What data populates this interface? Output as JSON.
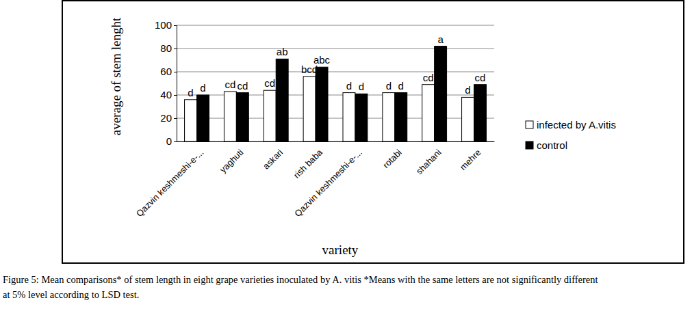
{
  "chart_data": {
    "type": "bar",
    "x_label": "variety",
    "y_label": "average of stem lenght",
    "categories": [
      "Qazvin keshmeshi-e-...",
      "yaghuti",
      "askari",
      "rish baba",
      "Qazvin keshmeshi-e-...",
      "rotabi",
      "shahani",
      "mehre"
    ],
    "series": [
      {
        "name": "infected by A.vitis",
        "color": "#ffffff",
        "values": [
          36,
          43,
          44,
          56,
          42,
          42,
          49,
          38
        ],
        "letters": [
          "d",
          "cd",
          "cd",
          "bcd",
          "d",
          "d",
          "cd",
          "d"
        ]
      },
      {
        "name": "control",
        "color": "#000000",
        "values": [
          40,
          42,
          71,
          64,
          41,
          42,
          82,
          49
        ],
        "letters": [
          "d",
          "cd",
          "ab",
          "abc",
          "d",
          "d",
          "a",
          "cd"
        ]
      }
    ],
    "ylim": [
      0,
      100
    ],
    "yticks": [
      0,
      20,
      40,
      60,
      80,
      100
    ],
    "grid": true,
    "legend": "right",
    "caption": [
      "Figure 5: Mean comparisons* of stem length in eight grape varieties inoculated by A. vitis *Means with the same letters are not significantly different",
      "at 5% level according to LSD test."
    ]
  }
}
